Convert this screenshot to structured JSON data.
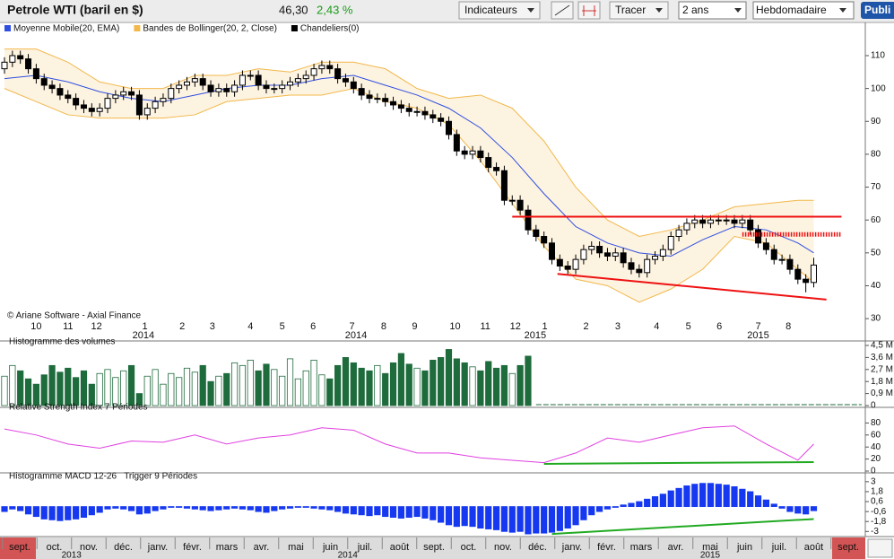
{
  "toolbar": {
    "title": "Petrole WTI (baril en $)",
    "price": "46,30",
    "change": "2,43 %",
    "buttons": [
      "Indicateurs",
      "Tracer"
    ],
    "period": "2 ans",
    "interval": "Hebdomadaire",
    "publish": "Publi"
  },
  "chart_data": [
    {
      "type": "candlestick",
      "copyright": "© Ariane Software - Axial Finance",
      "xlim": [
        0.435,
        109.5
      ],
      "ylim": [
        27.3,
        116
      ],
      "yticks": [
        30,
        40,
        50,
        60,
        70,
        80,
        90,
        100,
        110
      ],
      "period_labels": [
        {
          "value": 5,
          "label": "10"
        },
        {
          "value": 9,
          "label": "11"
        },
        {
          "value": 12.6,
          "label": "12"
        },
        {
          "value": 18.7,
          "label": "1"
        },
        {
          "value": 23.4,
          "label": "2"
        },
        {
          "value": 27.2,
          "label": "3"
        },
        {
          "value": 32,
          "label": "4"
        },
        {
          "value": 36,
          "label": "5"
        },
        {
          "value": 39.9,
          "label": "6"
        },
        {
          "value": 44.8,
          "label": "7"
        },
        {
          "value": 48.8,
          "label": "8"
        },
        {
          "value": 52.7,
          "label": "9"
        },
        {
          "value": 57.8,
          "label": "10"
        },
        {
          "value": 61.6,
          "label": "11"
        },
        {
          "value": 65.4,
          "label": "12"
        },
        {
          "value": 69.1,
          "label": "1"
        },
        {
          "value": 74.3,
          "label": "2"
        },
        {
          "value": 78.3,
          "label": "3"
        },
        {
          "value": 83.2,
          "label": "4"
        },
        {
          "value": 87.2,
          "label": "5"
        },
        {
          "value": 91.1,
          "label": "6"
        },
        {
          "value": 96,
          "label": "7"
        },
        {
          "value": 99.8,
          "label": "8"
        }
      ],
      "year_labels": [
        {
          "value": 18.5,
          "label": "2014"
        },
        {
          "value": 45.3,
          "label": "2014"
        },
        {
          "value": 67.9,
          "label": "2015"
        },
        {
          "value": 96,
          "label": "2015"
        }
      ],
      "series": [
        {
          "name": "Moyenne Mobile(20, EMA)",
          "color": "#2f4fe0",
          "x": [
            1,
            5,
            9,
            13,
            17,
            21,
            25,
            29,
            33,
            37,
            41,
            45,
            49,
            53,
            57,
            61,
            65,
            69,
            73,
            77,
            81,
            85,
            89,
            93,
            97,
            101,
            103
          ],
          "values": [
            103,
            104,
            102,
            99,
            97,
            96,
            98,
            100,
            101,
            101,
            103,
            104,
            101,
            98,
            94,
            88,
            79,
            68,
            58,
            53,
            50,
            49,
            54,
            58,
            57,
            53,
            50
          ]
        },
        {
          "name": "Bandes de Bollinger(20, 2, Close)",
          "color": "#f2b84b",
          "fill": "#fdf3e1",
          "x": [
            1,
            5,
            9,
            13,
            17,
            21,
            25,
            29,
            33,
            37,
            41,
            45,
            49,
            53,
            57,
            61,
            65,
            69,
            73,
            77,
            81,
            85,
            89,
            93,
            97,
            101,
            103
          ],
          "upper": [
            112,
            112,
            108,
            102,
            100,
            100,
            104,
            104,
            106,
            105,
            108,
            108,
            106,
            100,
            97,
            98,
            94,
            84,
            70,
            60,
            55,
            57,
            60,
            64,
            65,
            66,
            66
          ],
          "lower": [
            100,
            96,
            92,
            91,
            91,
            91,
            92,
            96,
            97,
            98,
            98,
            100,
            96,
            94,
            89,
            78,
            65,
            52,
            42,
            40,
            35,
            39,
            45,
            55,
            53,
            45,
            41
          ]
        },
        {
          "name": "Chandeliers(0)",
          "color": "#000000",
          "open": [
            106,
            108,
            110,
            109,
            106,
            103,
            101,
            100,
            98,
            97,
            95,
            94,
            93,
            94,
            97,
            98,
            99,
            98,
            92,
            94,
            96,
            97,
            100,
            101,
            102,
            103,
            101,
            99,
            100,
            99,
            101,
            104,
            104,
            101,
            100,
            100,
            101,
            102,
            103,
            104,
            106,
            107,
            106,
            103,
            102,
            100,
            98,
            97,
            97,
            96,
            95,
            94,
            93,
            93,
            92,
            91,
            90,
            86,
            81,
            80,
            81,
            79,
            76,
            75,
            66,
            66,
            63,
            57,
            55,
            53,
            48,
            46,
            45,
            48,
            51,
            52,
            50,
            49,
            50,
            47,
            45,
            44,
            48,
            49,
            51,
            55,
            57,
            59,
            60,
            59,
            60,
            60,
            60,
            59,
            60,
            57,
            53,
            51,
            48,
            48,
            45,
            42,
            41
          ],
          "high": [
            109.5,
            111.5,
            111.5,
            110.5,
            107.5,
            104.5,
            102.5,
            101.5,
            99.5,
            98.5,
            96.5,
            95.5,
            95.5,
            98.5,
            99.5,
            100.5,
            100.5,
            99.5,
            95.5,
            97.5,
            98.5,
            101.5,
            102.5,
            103.5,
            104.5,
            104.5,
            102.5,
            101.5,
            101.5,
            102.5,
            105.5,
            105.5,
            105.5,
            102.5,
            101.5,
            102.5,
            103.5,
            104.5,
            105.5,
            107.5,
            108.5,
            108.5,
            107.5,
            104.5,
            103.5,
            101.5,
            99.5,
            98.5,
            98.5,
            97.5,
            96.5,
            95.5,
            94.5,
            94.5,
            93.5,
            92.5,
            91.5,
            87.5,
            82.5,
            82.5,
            82.5,
            80.5,
            77.5,
            76.5,
            67.5,
            67.5,
            64.5,
            58.5,
            56.5,
            54.5,
            49.5,
            47.5,
            49.5,
            52.5,
            53.5,
            53.5,
            51.5,
            51.5,
            51.5,
            48.5,
            46.5,
            49.5,
            50.5,
            52.5,
            56.5,
            58.5,
            60.5,
            61.5,
            61.5,
            61.5,
            61.5,
            61.5,
            61.5,
            61.5,
            61.5,
            58.5,
            54.5,
            52.5,
            49.5,
            49.5,
            46.5,
            43.5,
            48.5
          ],
          "low": [
            104.5,
            106.5,
            107.5,
            104.5,
            101.5,
            99.5,
            98.5,
            96.5,
            95.5,
            93.5,
            92.5,
            91.5,
            91.5,
            92.5,
            95.5,
            96.5,
            96.5,
            90.5,
            90.5,
            92.5,
            94.5,
            95.5,
            98.5,
            99.5,
            100.5,
            99.5,
            97.5,
            97.5,
            97.5,
            97.5,
            99.5,
            102.5,
            99.5,
            98.5,
            98.5,
            98.5,
            99.5,
            100.5,
            101.5,
            102.5,
            104.5,
            104.5,
            101.5,
            100.5,
            98.5,
            96.5,
            95.5,
            95.5,
            94.5,
            93.5,
            92.5,
            91.5,
            91.5,
            90.5,
            89.5,
            88.5,
            84.5,
            79.5,
            78.5,
            78.5,
            77.5,
            74.5,
            73.5,
            64.5,
            64.5,
            61.5,
            55.5,
            53.5,
            51.5,
            46.5,
            44.5,
            43.5,
            43.5,
            46.5,
            49.5,
            48.5,
            47.5,
            47.5,
            45.5,
            43.5,
            42.5,
            42.5,
            46.5,
            47.5,
            49.5,
            53.5,
            55.5,
            57.5,
            57.5,
            57.5,
            58.5,
            58.5,
            57.5,
            57.5,
            55.5,
            51.5,
            49.5,
            46.5,
            46.5,
            43.5,
            40.5,
            38,
            39.5
          ],
          "close": [
            108,
            110,
            109,
            106,
            103,
            101,
            100,
            98,
            97,
            95,
            94,
            93,
            94,
            97,
            98,
            99,
            98,
            92,
            94,
            96,
            97,
            100,
            101,
            102,
            103,
            101,
            99,
            100,
            99,
            101,
            104,
            104,
            101,
            100,
            100,
            101,
            102,
            103,
            104,
            106,
            107,
            106,
            103,
            102,
            100,
            98,
            97,
            97,
            96,
            95,
            94,
            93,
            93,
            92,
            91,
            90,
            86,
            81,
            80,
            81,
            79,
            76,
            75,
            66,
            66,
            63,
            57,
            55,
            53,
            48,
            46,
            45,
            48,
            51,
            52,
            50,
            49,
            50,
            47,
            45,
            44,
            48,
            49,
            51,
            55,
            57,
            59,
            60,
            59,
            60,
            60,
            60,
            59,
            60,
            57,
            53,
            51,
            48,
            48,
            45,
            42,
            41,
            46.3
          ]
        }
      ],
      "annotations": [
        {
          "x": [
            65,
            106.5
          ],
          "y": [
            61,
            61
          ],
          "color": "#ee1111"
        },
        {
          "x": [
            94,
            106.5
          ],
          "y": [
            55.6,
            55.6
          ],
          "color": "#ee1111",
          "dotted": true
        },
        {
          "x": [
            70.7,
            104.6
          ],
          "y": [
            43.6,
            35.8
          ],
          "color": "#ee1111"
        }
      ]
    },
    {
      "type": "bar",
      "title": "Histogramme des volumes",
      "color": "#1e6b3c",
      "hollow_on_rise": true,
      "xlim": [
        0.435,
        109.5
      ],
      "ylim": [
        0,
        4.5
      ],
      "yticks": [
        0,
        {
          "value": 0.9,
          "label": "0,9 M"
        },
        {
          "value": 1.8,
          "label": "1,8 M"
        },
        {
          "value": 2.7,
          "label": "2,7 M"
        },
        {
          "value": 3.6,
          "label": "3,6 M"
        },
        {
          "value": 4.5,
          "label": "4,5 M"
        }
      ],
      "values": [
        2.2,
        3.0,
        2.6,
        2.0,
        1.6,
        2.3,
        3.0,
        2.5,
        2.8,
        2.1,
        2.6,
        1.6,
        2.4,
        2.7,
        2.1,
        2.6,
        3.0,
        0.9,
        2.2,
        2.7,
        1.6,
        2.4,
        2.1,
        2.8,
        2.5,
        3.0,
        1.8,
        2.2,
        2.4,
        3.2,
        3.0,
        3.4,
        2.6,
        3.1,
        2.7,
        2.2,
        3.5,
        2.0,
        2.6,
        3.4,
        2.3,
        2.0,
        3.0,
        3.6,
        3.2,
        2.8,
        2.6,
        3.0,
        2.4,
        3.2,
        3.9,
        3.1,
        2.8,
        2.6,
        3.4,
        3.6,
        4.2,
        3.5,
        3.2,
        2.9,
        2.6,
        3.3,
        2.8,
        3.0,
        2.4,
        3.0,
        3.7
      ]
    },
    {
      "type": "line",
      "title": "Relative Strength Index 7 Périodes",
      "color": "#e040e0",
      "xlim": [
        0.435,
        109.5
      ],
      "ylim": [
        0,
        100
      ],
      "yticks": [
        0,
        20,
        40,
        60,
        80
      ],
      "x": [
        1,
        5,
        9,
        13,
        17,
        21,
        25,
        29,
        33,
        37,
        41,
        45,
        49,
        53,
        57,
        61,
        65,
        69,
        73,
        77,
        81,
        85,
        89,
        93,
        97,
        101,
        103
      ],
      "values": [
        70,
        60,
        45,
        38,
        50,
        48,
        60,
        45,
        55,
        60,
        72,
        68,
        45,
        30,
        30,
        22,
        18,
        14,
        30,
        55,
        48,
        60,
        72,
        75,
        45,
        18,
        45
      ],
      "trend": {
        "x": [
          69,
          103
        ],
        "y": [
          12,
          15
        ],
        "color": "#22aa22"
      }
    },
    {
      "type": "bar",
      "title": "Histogramme MACD 12-26   Trigger 9 Périodes",
      "color": "#1538f0",
      "xlim": [
        0.435,
        109.5
      ],
      "ylim": [
        -3.4,
        3.2
      ],
      "yticks": [
        -3,
        {
          "value": -1.8,
          "label": "-1,8"
        },
        {
          "value": -0.6,
          "label": "-0,6"
        },
        {
          "value": 0.6,
          "label": "0,6"
        },
        {
          "value": 1.8,
          "label": "1,8"
        },
        3
      ],
      "values": [
        -0.6,
        -0.3,
        -0.5,
        -0.9,
        -1.2,
        -1.5,
        -1.6,
        -1.7,
        -1.6,
        -1.5,
        -1.3,
        -1.0,
        -0.7,
        -0.3,
        -0.2,
        -0.3,
        -0.5,
        -0.9,
        -0.8,
        -0.5,
        -0.3,
        -0.1,
        -0.1,
        -0.2,
        -0.3,
        -0.4,
        -0.5,
        -0.4,
        -0.3,
        -0.2,
        -0.3,
        -0.4,
        -0.6,
        -0.7,
        -0.5,
        -0.3,
        -0.2,
        -0.1,
        -0.1,
        -0.2,
        -0.3,
        -0.4,
        -0.6,
        -0.8,
        -0.9,
        -1.0,
        -1.1,
        -1.0,
        -1.2,
        -1.3,
        -1.4,
        -1.3,
        -1.2,
        -1.4,
        -1.6,
        -1.9,
        -2.2,
        -2.4,
        -2.3,
        -2.4,
        -2.6,
        -2.7,
        -2.8,
        -3.0,
        -3.1,
        -3.0,
        -3.3,
        -3.2,
        -3.2,
        -3.1,
        -2.9,
        -2.6,
        -2.2,
        -1.6,
        -1.0,
        -0.6,
        -0.3,
        -0.1,
        0.2,
        0.4,
        0.6,
        0.9,
        1.2,
        1.5,
        1.9,
        2.2,
        2.5,
        2.7,
        2.8,
        2.8,
        2.7,
        2.6,
        2.4,
        2.1,
        1.8,
        1.3,
        0.8,
        0.3,
        -0.2,
        -0.6,
        -0.8,
        -0.9,
        -0.5
      ],
      "trend": {
        "x": [
          70,
          103
        ],
        "y": [
          -3.3,
          -1.5
        ],
        "color": "#22aa22"
      }
    }
  ],
  "timeline": {
    "months": [
      "sept.",
      "oct.",
      "nov.",
      "déc.",
      "janv.",
      "févr.",
      "mars",
      "avr.",
      "mai",
      "juin",
      "juil.",
      "août",
      "sept.",
      "oct.",
      "nov.",
      "déc.",
      "janv.",
      "févr.",
      "mars",
      "avr.",
      "mai",
      "juin",
      "juil.",
      "août",
      "sept."
    ],
    "years": [
      {
        "value": 1.5,
        "label": "2013"
      },
      {
        "value": 9.5,
        "label": "2014"
      },
      {
        "value": 20,
        "label": "2015"
      }
    ]
  }
}
